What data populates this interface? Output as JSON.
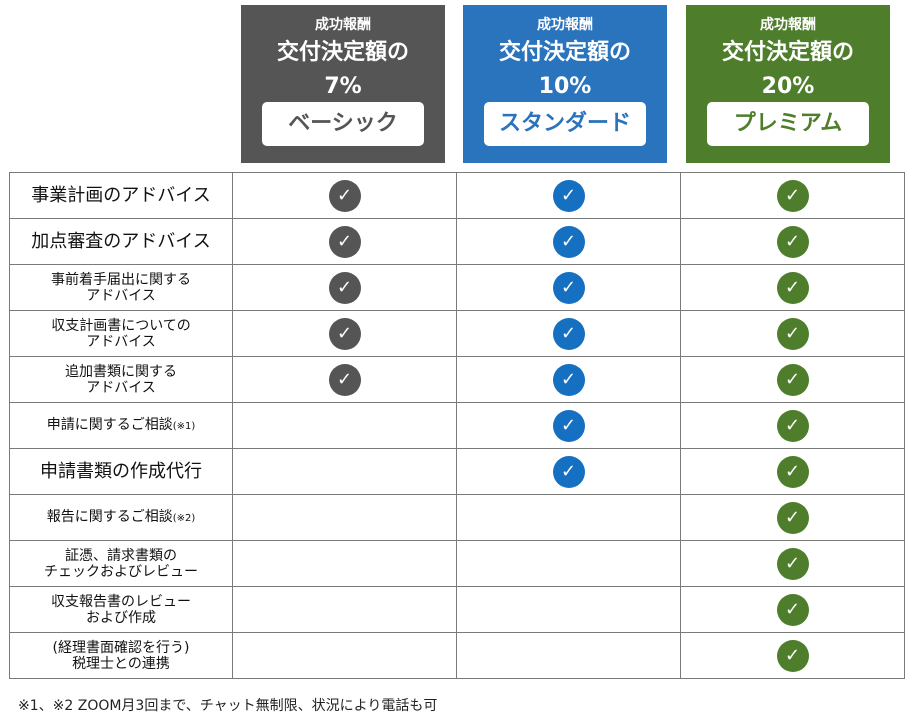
{
  "plans": [
    {
      "fee_label": "成功報酬",
      "rate_line1": "交付決定額の",
      "rate_line2": "7%",
      "name": "ベーシック",
      "color": "#555555"
    },
    {
      "fee_label": "成功報酬",
      "rate_line1": "交付決定額の",
      "rate_line2": "10%",
      "name": "スタンダード",
      "color": "#2a73bd"
    },
    {
      "fee_label": "成功報酬",
      "rate_line1": "交付決定額の",
      "rate_line2": "20%",
      "name": "プレミアム",
      "color": "#4e7e2b"
    }
  ],
  "check_icon": "check-circle-icon",
  "check_glyph": "✓",
  "rows": [
    {
      "line1": "事業計画のアドバイス",
      "line2": "",
      "note": "",
      "size": "lg",
      "checks": [
        true,
        true,
        true
      ]
    },
    {
      "line1": "加点審査のアドバイス",
      "line2": "",
      "note": "",
      "size": "lg",
      "checks": [
        true,
        true,
        true
      ]
    },
    {
      "line1": "事前着手届出に関する",
      "line2": "アドバイス",
      "note": "",
      "size": "sm",
      "checks": [
        true,
        true,
        true
      ]
    },
    {
      "line1": "収支計画書についての",
      "line2": "アドバイス",
      "note": "",
      "size": "sm",
      "checks": [
        true,
        true,
        true
      ]
    },
    {
      "line1": "追加書類に関する",
      "line2": "アドバイス",
      "note": "",
      "size": "sm",
      "checks": [
        true,
        true,
        true
      ]
    },
    {
      "line1": "申請に関するご相談",
      "line2": "",
      "note": "(※1)",
      "size": "sm",
      "checks": [
        false,
        true,
        true
      ]
    },
    {
      "line1": "申請書類の作成代行",
      "line2": "",
      "note": "",
      "size": "lg",
      "checks": [
        false,
        true,
        true
      ]
    },
    {
      "line1": "報告に関するご相談",
      "line2": "",
      "note": "(※2)",
      "size": "sm",
      "checks": [
        false,
        false,
        true
      ]
    },
    {
      "line1": "証憑、請求書類の",
      "line2": "チェックおよびレビュー",
      "note": "",
      "size": "sm",
      "checks": [
        false,
        false,
        true
      ]
    },
    {
      "line1": "収支報告書のレビュー",
      "line2": "および作成",
      "note": "",
      "size": "sm",
      "checks": [
        false,
        false,
        true
      ]
    },
    {
      "line1": "(経理書面確認を行う)",
      "line2": "税理士との連携",
      "note": "",
      "size": "sm",
      "checks": [
        false,
        false,
        true
      ]
    }
  ],
  "footnote": "※1、※2 ZOOM月3回まで、チャット無制限、状況により電話も可"
}
